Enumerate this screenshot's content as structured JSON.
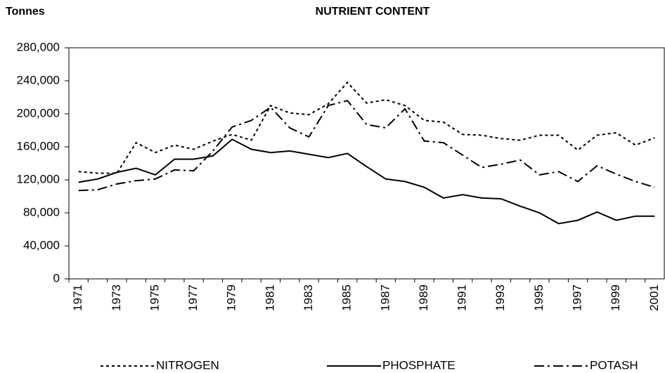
{
  "chart_data": {
    "type": "line",
    "title": "NUTRIENT CONTENT",
    "y_label": "Tonnes",
    "categories": [
      "1971",
      null,
      "1973",
      null,
      "1975",
      null,
      "1977",
      null,
      "1979",
      null,
      "1981",
      null,
      "1983",
      null,
      "1985",
      null,
      "1987",
      null,
      "1989",
      null,
      "1991",
      null,
      "1993",
      null,
      "1995",
      null,
      "1997",
      null,
      "1999",
      null,
      "2001"
    ],
    "series": [
      {
        "name": "NITROGEN",
        "color": "#000000",
        "dash": "4,4",
        "values": [
          130000,
          128000,
          128000,
          165000,
          153000,
          162000,
          157000,
          167000,
          175000,
          168000,
          210000,
          201000,
          199000,
          212000,
          238000,
          213000,
          217000,
          210000,
          192000,
          190000,
          175000,
          174000,
          170000,
          168000,
          174000,
          174000,
          156000,
          174000,
          177000,
          162000,
          171000
        ]
      },
      {
        "name": "PHOSPHATE",
        "color": "#000000",
        "dash": "none",
        "values": [
          117000,
          121000,
          129000,
          134000,
          126000,
          145000,
          145000,
          149000,
          169000,
          157000,
          153000,
          155000,
          151000,
          147000,
          152000,
          136000,
          121000,
          118000,
          111000,
          98000,
          102000,
          98000,
          97000,
          88000,
          80000,
          67000,
          71000,
          81000,
          71000,
          76000,
          76000
        ]
      },
      {
        "name": "POTASH",
        "color": "#000000",
        "dash": "14,5,3,5",
        "values": [
          107000,
          108000,
          115000,
          119000,
          121000,
          132000,
          131000,
          155000,
          184000,
          192000,
          208000,
          183000,
          172000,
          210000,
          216000,
          187000,
          183000,
          206000,
          167000,
          165000,
          150000,
          135000,
          139000,
          144000,
          126000,
          130000,
          118000,
          137000,
          127000,
          118000,
          111000
        ]
      }
    ],
    "ylim": [
      0,
      280000
    ],
    "yticks": [
      0,
      {
        "value": 40000,
        "label": "40,000"
      },
      {
        "value": 80000,
        "label": "80,000"
      },
      {
        "value": 120000,
        "label": "120,000"
      },
      {
        "value": 160000,
        "label": "160,000"
      },
      {
        "value": 200000,
        "label": "200,000"
      },
      {
        "value": 240000,
        "label": "240,000"
      },
      {
        "value": 280000,
        "label": "280,000"
      }
    ],
    "grid": false,
    "legend": "bottom"
  }
}
